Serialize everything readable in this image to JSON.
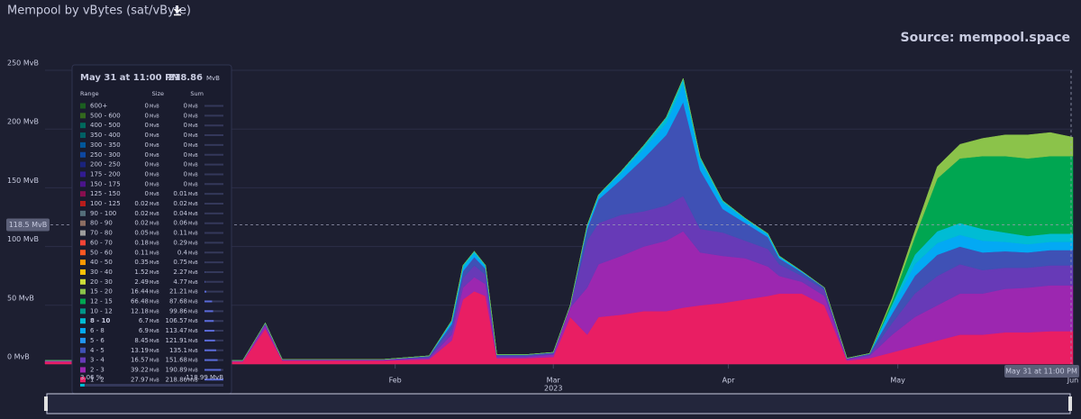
{
  "header": {
    "title": "Mempool by vBytes (sat/vByte)",
    "source": "Source: mempool.space"
  },
  "chart_data": {
    "type": "stacked_area",
    "x": [
      -30,
      -20,
      -10,
      0,
      5,
      9,
      12,
      20,
      30,
      38,
      42,
      44,
      46,
      48,
      50,
      55,
      60,
      63,
      66,
      68,
      72,
      76,
      80,
      83,
      86,
      90,
      94,
      98,
      100,
      104,
      108,
      112,
      116,
      120,
      124,
      128,
      132,
      136,
      140,
      144,
      148,
      152
    ],
    "xlim": [
      -30,
      152
    ],
    "xticks": [
      {
        "value": 32,
        "label": "Feb"
      },
      {
        "value": 60,
        "label": "Mar"
      },
      {
        "value": 91,
        "label": "Apr"
      },
      {
        "value": 121,
        "label": "May"
      },
      {
        "value": 152,
        "label": "Jun"
      }
    ],
    "xlabel": "2023",
    "ylim": [
      0,
      250
    ],
    "yticks": [
      {
        "value": 0,
        "label": "0 MvB"
      },
      {
        "value": 50,
        "label": "50 MvB"
      },
      {
        "value": 100,
        "label": "100 MvB"
      },
      {
        "value": 150,
        "label": "150 MvB"
      },
      {
        "value": 200,
        "label": "200 MvB"
      },
      {
        "value": 250,
        "label": "250 MvB"
      }
    ],
    "grid": true,
    "crosshair": {
      "value": 118.5,
      "label": "118.5 MvB"
    },
    "series": [
      {
        "name": "1 - 2",
        "values": [
          2,
          2,
          2,
          2,
          2,
          30,
          3,
          3,
          3,
          4,
          20,
          55,
          62,
          58,
          5,
          5,
          6,
          40,
          25,
          40,
          42,
          45,
          45,
          48,
          50,
          52,
          55,
          58,
          60,
          60,
          50,
          3,
          5,
          10,
          15,
          20,
          25,
          25,
          27,
          27,
          28,
          28
        ]
      },
      {
        "name": "2 - 3",
        "values": [
          0.5,
          0.5,
          0.5,
          0.5,
          0.5,
          3,
          0.5,
          0.5,
          0.5,
          1,
          5,
          10,
          12,
          10,
          1,
          1,
          2,
          8,
          40,
          45,
          50,
          55,
          60,
          65,
          45,
          40,
          35,
          25,
          15,
          10,
          8,
          1,
          2,
          15,
          25,
          30,
          35,
          35,
          37,
          38,
          39,
          39
        ]
      },
      {
        "name": "3 - 4",
        "values": [
          0.3,
          0.3,
          0.3,
          0.3,
          0.3,
          1,
          0.3,
          0.3,
          0.3,
          1,
          5,
          8,
          10,
          8,
          1,
          1,
          1,
          2,
          40,
          35,
          35,
          30,
          30,
          30,
          20,
          20,
          15,
          15,
          10,
          5,
          5,
          1,
          1,
          10,
          20,
          25,
          25,
          20,
          18,
          17,
          17,
          17
        ]
      },
      {
        "name": "4 - 5",
        "values": [
          0.2,
          0.2,
          0.2,
          0.2,
          0.2,
          1,
          0.2,
          0.2,
          0.2,
          1,
          4,
          6,
          7,
          5,
          1,
          1,
          1,
          0,
          10,
          20,
          30,
          45,
          60,
          80,
          50,
          20,
          15,
          10,
          5,
          3,
          2,
          0,
          1,
          8,
          15,
          18,
          15,
          15,
          14,
          13,
          13,
          13
        ]
      },
      {
        "name": "6 - 8",
        "values": [
          0,
          0,
          0,
          0,
          0,
          0,
          0,
          0,
          0,
          0,
          2,
          3,
          3,
          2,
          0,
          0,
          0,
          0,
          2,
          3,
          5,
          8,
          10,
          15,
          8,
          5,
          3,
          2,
          1,
          1,
          0,
          0,
          0,
          5,
          10,
          10,
          10,
          10,
          8,
          7,
          7,
          7
        ]
      },
      {
        "name": "8 - 10",
        "values": [
          0,
          0,
          0,
          0,
          0,
          0,
          0,
          0,
          0,
          0,
          1,
          2,
          2,
          1,
          0,
          0,
          0,
          0,
          1,
          1,
          2,
          3,
          5,
          5,
          3,
          2,
          1,
          1,
          1,
          0,
          0,
          0,
          0,
          3,
          8,
          10,
          10,
          10,
          8,
          7,
          7,
          7
        ]
      },
      {
        "name": "12 - 15",
        "values": [
          0,
          0,
          0,
          0,
          0,
          0,
          0,
          0,
          0,
          0,
          0,
          0,
          0,
          0,
          0,
          0,
          0,
          0,
          0,
          0,
          0,
          0,
          0,
          0,
          0,
          0,
          0,
          0,
          0,
          0,
          0,
          0,
          0,
          3,
          15,
          45,
          55,
          62,
          65,
          66,
          66,
          66
        ]
      },
      {
        "name": "15 - 20",
        "values": [
          0,
          0,
          0,
          0,
          0,
          0,
          0,
          0,
          0,
          0,
          0,
          0,
          0,
          0,
          0,
          0,
          0,
          0,
          0,
          0,
          0,
          0,
          0,
          0,
          0,
          0,
          0,
          0,
          0,
          0,
          0,
          0,
          0,
          2,
          5,
          10,
          12,
          15,
          18,
          20,
          20,
          16
        ]
      }
    ]
  },
  "tooltip": {
    "date": "May 31 at 11:00 PM",
    "total": 218.86,
    "unit": "MvB",
    "columns": [
      "Range",
      "Size",
      "Sum"
    ],
    "rows": [
      {
        "range": "600+",
        "size": 0,
        "sum": 0,
        "color": "#1b5e20"
      },
      {
        "range": "500 - 600",
        "size": 0,
        "sum": 0,
        "color": "#33691e"
      },
      {
        "range": "400 - 500",
        "size": 0,
        "sum": 0,
        "color": "#00695c"
      },
      {
        "range": "350 - 400",
        "size": 0,
        "sum": 0,
        "color": "#006064"
      },
      {
        "range": "300 - 350",
        "size": 0,
        "sum": 0,
        "color": "#01579b"
      },
      {
        "range": "250 - 300",
        "size": 0,
        "sum": 0,
        "color": "#0d47a1"
      },
      {
        "range": "200 - 250",
        "size": 0,
        "sum": 0,
        "color": "#1a237e"
      },
      {
        "range": "175 - 200",
        "size": 0,
        "sum": 0,
        "color": "#311b92"
      },
      {
        "range": "150 - 175",
        "size": 0,
        "sum": 0,
        "color": "#4a148c"
      },
      {
        "range": "125 - 150",
        "size": 0,
        "sum": 0.01,
        "color": "#880e4f"
      },
      {
        "range": "100 - 125",
        "size": 0.02,
        "sum": 0.02,
        "color": "#b71c1c"
      },
      {
        "range": "90 - 100",
        "size": 0.02,
        "sum": 0.04,
        "color": "#546e7a"
      },
      {
        "range": "80 - 90",
        "size": 0.02,
        "sum": 0.06,
        "color": "#8d6e63"
      },
      {
        "range": "70 - 80",
        "size": 0.05,
        "sum": 0.11,
        "color": "#9e9e9e"
      },
      {
        "range": "60 - 70",
        "size": 0.18,
        "sum": 0.29,
        "color": "#f44336"
      },
      {
        "range": "50 - 60",
        "size": 0.11,
        "sum": 0.4,
        "color": "#ff5722"
      },
      {
        "range": "40 - 50",
        "size": 0.35,
        "sum": 0.75,
        "color": "#ff9800"
      },
      {
        "range": "30 - 40",
        "size": 1.52,
        "sum": 2.27,
        "color": "#ffc107"
      },
      {
        "range": "20 - 30",
        "size": 2.49,
        "sum": 4.77,
        "color": "#cddc39"
      },
      {
        "range": "15 - 20",
        "size": 16.44,
        "sum": 21.21,
        "color": "#8bc34a"
      },
      {
        "range": "12 - 15",
        "size": 66.48,
        "sum": 87.68,
        "color": "#00a651"
      },
      {
        "range": "10 - 12",
        "size": 12.18,
        "sum": 99.86,
        "color": "#009688"
      },
      {
        "range": "8 - 10",
        "size": 6.7,
        "sum": 106.57,
        "color": "#00bcd4",
        "highlight": true
      },
      {
        "range": "6 - 8",
        "size": 6.9,
        "sum": 113.47,
        "color": "#03a9f4"
      },
      {
        "range": "5 - 6",
        "size": 8.45,
        "sum": 121.91,
        "color": "#2196f3"
      },
      {
        "range": "4 - 5",
        "size": 13.19,
        "sum": 135.1,
        "color": "#3f51b5"
      },
      {
        "range": "3 - 4",
        "size": 16.57,
        "sum": 151.68,
        "color": "#673ab7"
      },
      {
        "range": "2 - 3",
        "size": 39.22,
        "sum": 190.89,
        "color": "#9c27b0"
      },
      {
        "range": "1 - 2",
        "size": 27.97,
        "sum": 218.86,
        "color": "#e91e63"
      }
    ],
    "percent": {
      "value": 3.06,
      "label": "3.06 %"
    },
    "footer_total": "118.99 MvB"
  }
}
